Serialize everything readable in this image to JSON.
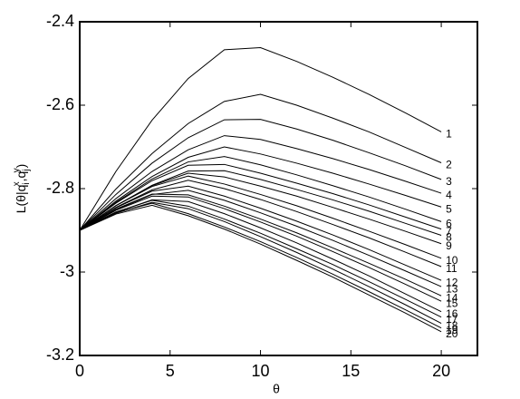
{
  "chart_data": {
    "type": "line",
    "xlabel": "θ",
    "ylabel_parts": [
      "L(θ|q",
      "i",
      "x",
      ",q",
      "j",
      "y",
      ")"
    ],
    "x": [
      0,
      2,
      4,
      6,
      8,
      10,
      12,
      14,
      16,
      18,
      20
    ],
    "xlim": [
      0,
      22
    ],
    "ylim": [
      -3.2,
      -2.4
    ],
    "xticks": [
      0,
      5,
      10,
      15,
      20
    ],
    "yticks": [
      -3.2,
      -3,
      -2.8,
      -2.6,
      -2.4
    ],
    "color": "#000000",
    "series": [
      {
        "name": "1",
        "values": [
          -2.9,
          -2.759,
          -2.636,
          -2.536,
          -2.467,
          -2.462,
          -2.495,
          -2.533,
          -2.574,
          -2.618,
          -2.664
        ]
      },
      {
        "name": "2",
        "values": [
          -2.9,
          -2.801,
          -2.716,
          -2.644,
          -2.591,
          -2.574,
          -2.6,
          -2.631,
          -2.664,
          -2.701,
          -2.738
        ]
      },
      {
        "name": "3",
        "values": [
          -2.9,
          -2.814,
          -2.739,
          -2.678,
          -2.635,
          -2.634,
          -2.657,
          -2.684,
          -2.714,
          -2.745,
          -2.778
        ]
      },
      {
        "name": "4",
        "values": [
          -2.9,
          -2.824,
          -2.759,
          -2.707,
          -2.673,
          -2.682,
          -2.704,
          -2.728,
          -2.754,
          -2.782,
          -2.811
        ]
      },
      {
        "name": "5",
        "values": [
          -2.9,
          -2.83,
          -2.771,
          -2.725,
          -2.7,
          -2.717,
          -2.739,
          -2.763,
          -2.789,
          -2.816,
          -2.844
        ]
      },
      {
        "name": "6",
        "values": [
          -2.9,
          -2.833,
          -2.777,
          -2.736,
          -2.723,
          -2.743,
          -2.767,
          -2.793,
          -2.82,
          -2.849,
          -2.879
        ]
      },
      {
        "name": "7",
        "values": [
          -2.9,
          -2.835,
          -2.781,
          -2.744,
          -2.742,
          -2.763,
          -2.787,
          -2.812,
          -2.839,
          -2.868,
          -2.897
        ]
      },
      {
        "name": "8",
        "values": [
          -2.9,
          -2.841,
          -2.792,
          -2.758,
          -2.757,
          -2.778,
          -2.802,
          -2.827,
          -2.854,
          -2.883,
          -2.912
        ]
      },
      {
        "name": "9",
        "values": [
          -2.9,
          -2.841,
          -2.793,
          -2.763,
          -2.772,
          -2.794,
          -2.818,
          -2.845,
          -2.873,
          -2.902,
          -2.932
        ]
      },
      {
        "name": "10",
        "values": [
          -2.9,
          -2.841,
          -2.795,
          -2.77,
          -2.789,
          -2.814,
          -2.841,
          -2.871,
          -2.902,
          -2.934,
          -2.967
        ]
      },
      {
        "name": "11",
        "values": [
          -2.9,
          -2.845,
          -2.803,
          -2.78,
          -2.8,
          -2.826,
          -2.855,
          -2.886,
          -2.918,
          -2.952,
          -2.987
        ]
      },
      {
        "name": "12",
        "values": [
          -2.9,
          -2.846,
          -2.806,
          -2.794,
          -2.818,
          -2.847,
          -2.878,
          -2.911,
          -2.946,
          -2.983,
          -3.02
        ]
      },
      {
        "name": "13",
        "values": [
          -2.9,
          -2.851,
          -2.814,
          -2.804,
          -2.828,
          -2.858,
          -2.89,
          -2.924,
          -2.96,
          -2.997,
          -3.035
        ]
      },
      {
        "name": "14",
        "values": [
          -2.9,
          -2.849,
          -2.813,
          -2.815,
          -2.842,
          -2.873,
          -2.906,
          -2.942,
          -2.979,
          -3.017,
          -3.057
        ]
      },
      {
        "name": "15",
        "values": [
          -2.9,
          -2.852,
          -2.818,
          -2.82,
          -2.848,
          -2.88,
          -2.914,
          -2.951,
          -2.989,
          -3.029,
          -3.07
        ]
      },
      {
        "name": "16",
        "values": [
          -2.9,
          -2.857,
          -2.827,
          -2.831,
          -2.86,
          -2.894,
          -2.93,
          -2.969,
          -3.009,
          -3.052,
          -3.095
        ]
      },
      {
        "name": "17",
        "values": [
          -2.9,
          -2.856,
          -2.828,
          -2.842,
          -2.873,
          -2.907,
          -2.944,
          -2.982,
          -3.023,
          -3.065,
          -3.108
        ]
      },
      {
        "name": "18",
        "values": [
          -2.9,
          -2.859,
          -2.833,
          -2.848,
          -2.879,
          -2.915,
          -2.953,
          -2.993,
          -3.035,
          -3.078,
          -3.123
        ]
      },
      {
        "name": "19",
        "values": [
          -2.9,
          -2.858,
          -2.835,
          -2.86,
          -2.892,
          -2.927,
          -2.965,
          -3.005,
          -3.047,
          -3.09,
          -3.134
        ]
      },
      {
        "name": "20",
        "values": [
          -2.9,
          -2.861,
          -2.84,
          -2.865,
          -2.897,
          -2.933,
          -2.972,
          -3.012,
          -3.055,
          -3.098,
          -3.143
        ]
      }
    ]
  }
}
